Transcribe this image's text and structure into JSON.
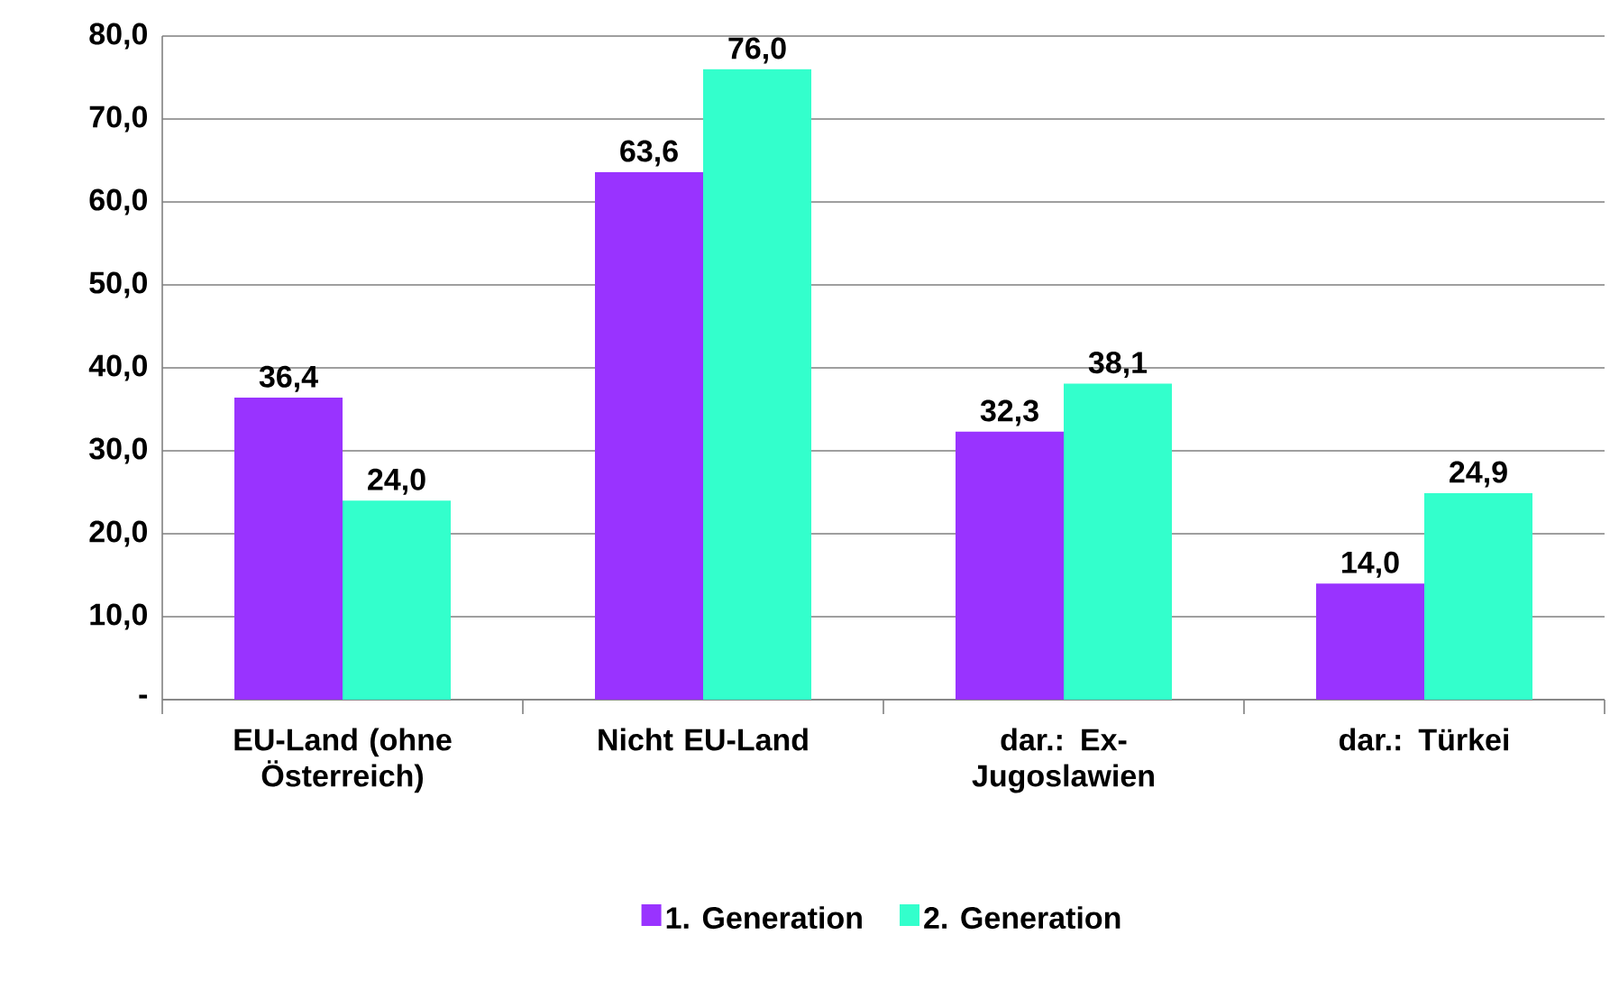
{
  "chart_data": {
    "type": "bar",
    "categories": [
      "EU-Land (ohne Österreich)",
      "Nicht EU-Land",
      "dar.: Ex-Jugoslawien",
      "dar.: Türkei"
    ],
    "series": [
      {
        "name": "1. Generation",
        "color": "#9933ff",
        "values": [
          36.4,
          63.6,
          32.3,
          14.0
        ],
        "value_labels": [
          "36,4",
          "63,6",
          "32,3",
          "14,0"
        ]
      },
      {
        "name": "2. Generation",
        "color": "#33ffcc",
        "values": [
          24.0,
          76.0,
          38.1,
          24.9
        ],
        "value_labels": [
          "24,0",
          "76,0",
          "38,1",
          "24,9"
        ]
      }
    ],
    "ylim": [
      0,
      80
    ],
    "yticks": [
      {
        "value": 0,
        "label": "-"
      },
      {
        "value": 10,
        "label": "10,0"
      },
      {
        "value": 20,
        "label": "20,0"
      },
      {
        "value": 30,
        "label": "30,0"
      },
      {
        "value": 40,
        "label": "40,0"
      },
      {
        "value": 50,
        "label": "50,0"
      },
      {
        "value": 60,
        "label": "60,0"
      },
      {
        "value": 70,
        "label": "70,0"
      },
      {
        "value": 80,
        "label": "80,0"
      }
    ],
    "grid": "y",
    "legend": "bottom"
  }
}
